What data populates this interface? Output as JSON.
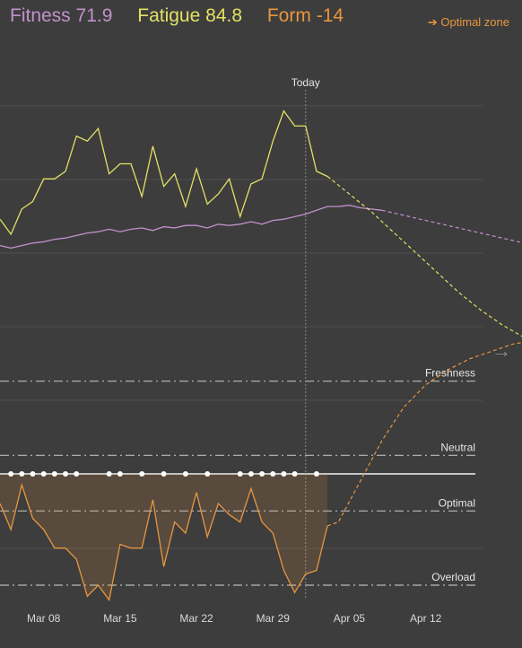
{
  "stats": {
    "fitness_label": "Fitness",
    "fitness_value": "71.9",
    "fatigue_label": "Fatigue",
    "fatigue_value": "84.8",
    "form_label": "Form",
    "form_value": "-14"
  },
  "optimal_link": {
    "arrow": "➔",
    "label": "Optimal zone"
  },
  "nav": {
    "next_icon": "arrow-right-icon"
  },
  "colors": {
    "fitness": "#c191cc",
    "fatigue": "#e3e164",
    "form": "#e8963e",
    "background": "#3d3d3d",
    "grid": "#4f4f4f",
    "zone_line": "#b9b9b9"
  },
  "chart_data": {
    "type": "line",
    "title": "",
    "x_start": "2025-03-04",
    "today": "2025-04-01",
    "today_label": "Today",
    "x_ticks": [
      {
        "date": "2025-03-08",
        "label": "Mar 08"
      },
      {
        "date": "2025-03-15",
        "label": "Mar 15"
      },
      {
        "date": "2025-03-22",
        "label": "Mar 22"
      },
      {
        "date": "2025-03-29",
        "label": "Mar 29"
      },
      {
        "date": "2025-04-05",
        "label": "Apr 05"
      },
      {
        "date": "2025-04-12",
        "label": "Apr 12"
      }
    ],
    "ylim_load": [
      0,
      130
    ],
    "ylim_form": [
      -50,
      35
    ],
    "zones": [
      {
        "label": "Freshness",
        "value": 25
      },
      {
        "label": "Neutral",
        "value": 5
      },
      {
        "label": "Optimal",
        "value": -10
      },
      {
        "label": "Overload",
        "value": -30
      }
    ],
    "series": [
      {
        "name": "Fitness",
        "key": "fitness",
        "actual": [
          [
            "2025-03-04",
            61.5
          ],
          [
            "2025-03-05",
            60.5
          ],
          [
            "2025-03-06",
            61.5
          ],
          [
            "2025-03-07",
            62.5
          ],
          [
            "2025-03-08",
            63
          ],
          [
            "2025-03-09",
            64
          ],
          [
            "2025-03-10",
            64.5
          ],
          [
            "2025-03-11",
            65.5
          ],
          [
            "2025-03-12",
            66.5
          ],
          [
            "2025-03-13",
            67
          ],
          [
            "2025-03-14",
            68
          ],
          [
            "2025-03-15",
            67
          ],
          [
            "2025-03-16",
            68
          ],
          [
            "2025-03-17",
            68.5
          ],
          [
            "2025-03-18",
            67.5
          ],
          [
            "2025-03-19",
            69
          ],
          [
            "2025-03-20",
            68.5
          ],
          [
            "2025-03-21",
            69.5
          ],
          [
            "2025-03-22",
            69.5
          ],
          [
            "2025-03-23",
            68.5
          ],
          [
            "2025-03-24",
            70
          ],
          [
            "2025-03-25",
            69.5
          ],
          [
            "2025-03-26",
            70
          ],
          [
            "2025-03-27",
            71
          ],
          [
            "2025-03-28",
            70
          ],
          [
            "2025-03-29",
            71.5
          ],
          [
            "2025-03-30",
            72
          ],
          [
            "2025-03-31",
            73
          ],
          [
            "2025-04-01",
            74
          ],
          [
            "2025-04-02",
            75.5
          ],
          [
            "2025-04-03",
            77
          ],
          [
            "2025-04-04",
            77
          ],
          [
            "2025-04-05",
            77.5
          ],
          [
            "2025-04-06",
            76.5
          ],
          [
            "2025-04-07",
            76
          ],
          [
            "2025-04-08",
            75.5
          ]
        ],
        "forecast": [
          [
            "2025-04-08",
            75.5
          ],
          [
            "2025-04-10",
            73.5
          ],
          [
            "2025-04-12",
            71.5
          ],
          [
            "2025-04-14",
            69.5
          ],
          [
            "2025-04-16",
            67.5
          ],
          [
            "2025-04-18",
            65.5
          ],
          [
            "2025-04-20",
            63.5
          ],
          [
            "2025-04-22",
            61.5
          ],
          [
            "2025-04-24",
            59.5
          ],
          [
            "2025-04-26",
            57.5
          ],
          [
            "2025-04-28",
            55.5
          ],
          [
            "2025-04-30",
            53.5
          ],
          [
            "2025-05-02",
            51.5
          ],
          [
            "2025-05-04",
            49.5
          ],
          [
            "2025-05-06",
            47.5
          ],
          [
            "2025-05-08",
            45.5
          ]
        ]
      },
      {
        "name": "Fatigue",
        "key": "fatigue",
        "actual": [
          [
            "2025-03-04",
            72
          ],
          [
            "2025-03-05",
            66
          ],
          [
            "2025-03-06",
            76
          ],
          [
            "2025-03-07",
            79
          ],
          [
            "2025-03-08",
            88
          ],
          [
            "2025-03-09",
            88
          ],
          [
            "2025-03-10",
            91
          ],
          [
            "2025-03-11",
            105
          ],
          [
            "2025-03-12",
            103
          ],
          [
            "2025-03-13",
            108
          ],
          [
            "2025-03-14",
            90
          ],
          [
            "2025-03-15",
            94
          ],
          [
            "2025-03-16",
            94
          ],
          [
            "2025-03-17",
            81
          ],
          [
            "2025-03-18",
            101
          ],
          [
            "2025-03-19",
            85
          ],
          [
            "2025-03-20",
            90
          ],
          [
            "2025-03-21",
            77
          ],
          [
            "2025-03-22",
            92
          ],
          [
            "2025-03-23",
            78
          ],
          [
            "2025-03-24",
            82
          ],
          [
            "2025-03-25",
            88
          ],
          [
            "2025-03-26",
            73
          ],
          [
            "2025-03-27",
            86
          ],
          [
            "2025-03-28",
            88
          ],
          [
            "2025-03-29",
            103
          ],
          [
            "2025-03-30",
            115
          ],
          [
            "2025-03-31",
            109
          ],
          [
            "2025-04-01",
            109
          ],
          [
            "2025-04-02",
            91
          ],
          [
            "2025-04-03",
            89
          ]
        ],
        "forecast": [
          [
            "2025-04-03",
            89
          ],
          [
            "2025-04-05",
            82
          ],
          [
            "2025-04-07",
            75
          ],
          [
            "2025-04-09",
            67
          ],
          [
            "2025-04-11",
            59
          ],
          [
            "2025-04-13",
            51
          ],
          [
            "2025-04-15",
            43
          ],
          [
            "2025-04-17",
            36
          ],
          [
            "2025-04-19",
            30
          ],
          [
            "2025-04-21",
            25
          ],
          [
            "2025-04-23",
            21
          ],
          [
            "2025-04-25",
            18
          ],
          [
            "2025-04-27",
            15
          ],
          [
            "2025-04-29",
            13
          ],
          [
            "2025-05-01",
            11
          ],
          [
            "2025-05-03",
            9.5
          ],
          [
            "2025-05-05",
            8
          ]
        ]
      },
      {
        "name": "Form",
        "key": "form",
        "actual": [
          [
            "2025-03-04",
            -8
          ],
          [
            "2025-03-05",
            -15
          ],
          [
            "2025-03-06",
            -3
          ],
          [
            "2025-03-07",
            -12
          ],
          [
            "2025-03-08",
            -15
          ],
          [
            "2025-03-09",
            -20
          ],
          [
            "2025-03-10",
            -20
          ],
          [
            "2025-03-11",
            -23
          ],
          [
            "2025-03-12",
            -33
          ],
          [
            "2025-03-13",
            -30
          ],
          [
            "2025-03-14",
            -34
          ],
          [
            "2025-03-15",
            -19
          ],
          [
            "2025-03-16",
            -20
          ],
          [
            "2025-03-17",
            -20
          ],
          [
            "2025-03-18",
            -7
          ],
          [
            "2025-03-19",
            -25
          ],
          [
            "2025-03-20",
            -13
          ],
          [
            "2025-03-21",
            -16
          ],
          [
            "2025-03-22",
            -5
          ],
          [
            "2025-03-23",
            -17
          ],
          [
            "2025-03-24",
            -8
          ],
          [
            "2025-03-25",
            -11
          ],
          [
            "2025-03-26",
            -13
          ],
          [
            "2025-03-27",
            -4
          ],
          [
            "2025-03-28",
            -13
          ],
          [
            "2025-03-29",
            -16
          ],
          [
            "2025-03-30",
            -26
          ],
          [
            "2025-03-31",
            -32
          ],
          [
            "2025-04-01",
            -27
          ],
          [
            "2025-04-02",
            -26
          ],
          [
            "2025-04-03",
            -14
          ]
        ],
        "forecast": [
          [
            "2025-04-03",
            -14
          ],
          [
            "2025-04-04",
            -13
          ],
          [
            "2025-04-06",
            -2
          ],
          [
            "2025-04-08",
            9
          ],
          [
            "2025-04-10",
            18
          ],
          [
            "2025-04-12",
            24
          ],
          [
            "2025-04-14",
            28
          ],
          [
            "2025-04-16",
            31
          ],
          [
            "2025-04-18",
            33
          ],
          [
            "2025-04-20",
            35
          ],
          [
            "2025-04-22",
            36
          ],
          [
            "2025-04-24",
            36.5
          ]
        ]
      }
    ],
    "workout_markers": [
      "2025-03-05",
      "2025-03-06",
      "2025-03-07",
      "2025-03-08",
      "2025-03-09",
      "2025-03-10",
      "2025-03-11",
      "2025-03-14",
      "2025-03-15",
      "2025-03-17",
      "2025-03-19",
      "2025-03-21",
      "2025-03-23",
      "2025-03-26",
      "2025-03-27",
      "2025-03-28",
      "2025-03-29",
      "2025-03-30",
      "2025-03-31",
      "2025-04-02"
    ]
  }
}
